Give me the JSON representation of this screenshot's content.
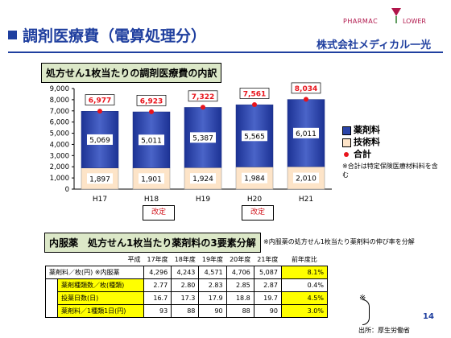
{
  "header": {
    "title": "調剤医療費（電算処理分）",
    "logo_line1": "PHARMAC",
    "logo_line2": "LOWER",
    "company": "株式会社メディカル一光"
  },
  "section1": {
    "title": "処方せん1枚当たりの調剤医療費の内訳"
  },
  "chart_data": {
    "type": "bar",
    "title": "処方せん1枚当たりの調剤医療費の内訳",
    "categories": [
      "H17",
      "H18",
      "H19",
      "H20",
      "H21"
    ],
    "series": [
      {
        "name": "技術料",
        "values": [
          1897,
          1901,
          1924,
          1984,
          2010
        ],
        "color": "#fde4c8"
      },
      {
        "name": "薬剤料",
        "values": [
          5069,
          5011,
          5387,
          5565,
          6011
        ],
        "color": "#2a44a8"
      }
    ],
    "total": {
      "name": "合計",
      "values": [
        6977,
        6923,
        7322,
        7561,
        8034
      ],
      "color": "#e8141c"
    },
    "category_notes": [
      "",
      "改定",
      "",
      "改定",
      ""
    ],
    "ylim": [
      0,
      9000
    ],
    "yticks": [
      "0",
      "1,000",
      "2,000",
      "3,000",
      "4,000",
      "5,000",
      "6,000",
      "7,000",
      "8,000",
      "9,000"
    ],
    "legend_note": "※合計は特定保険医療材料料を含む",
    "stacked": true
  },
  "chart_labels": {
    "tech": [
      "1,897",
      "1,901",
      "1,924",
      "1,984",
      "2,010"
    ],
    "drug": [
      "5,069",
      "5,011",
      "5,387",
      "5,565",
      "6,011"
    ],
    "total": [
      "6,977",
      "6,923",
      "7,322",
      "7,561",
      "8,034"
    ]
  },
  "section2": {
    "title": "内服薬　処方せん1枚当たり薬剤料の3要素分解",
    "note": "※内服薬の処方せん1枚当たり薬剤料の伸び率を分解"
  },
  "table": {
    "head": {
      "label": "平成",
      "years": [
        "17年度",
        "18年度",
        "19年度",
        "20年度",
        "21年度"
      ],
      "rate": "前年度比"
    },
    "rows": [
      {
        "label": "薬剤料／枚(円) ※内服薬",
        "values": [
          "4,296",
          "4,243",
          "4,571",
          "4,706",
          "5,087"
        ],
        "rate": "8.1%",
        "highlight": true,
        "indent": false
      },
      {
        "label": "薬剤種類数／枚(種類)",
        "values": [
          "2.77",
          "2.80",
          "2.83",
          "2.85",
          "2.87"
        ],
        "rate": "0.4%",
        "highlight": false,
        "indent": true
      },
      {
        "label": "投薬日数(日)",
        "values": [
          "16.7",
          "17.3",
          "17.9",
          "18.8",
          "19.7"
        ],
        "rate": "4.5%",
        "highlight": true,
        "indent": true
      },
      {
        "label": "薬剤料／1種類1日(円)",
        "values": [
          "93",
          "88",
          "90",
          "88",
          "90"
        ],
        "rate": "3.0%",
        "highlight": true,
        "indent": true
      }
    ],
    "star": "※"
  },
  "footer": {
    "page": "14",
    "source": "出所：厚生労働省"
  }
}
